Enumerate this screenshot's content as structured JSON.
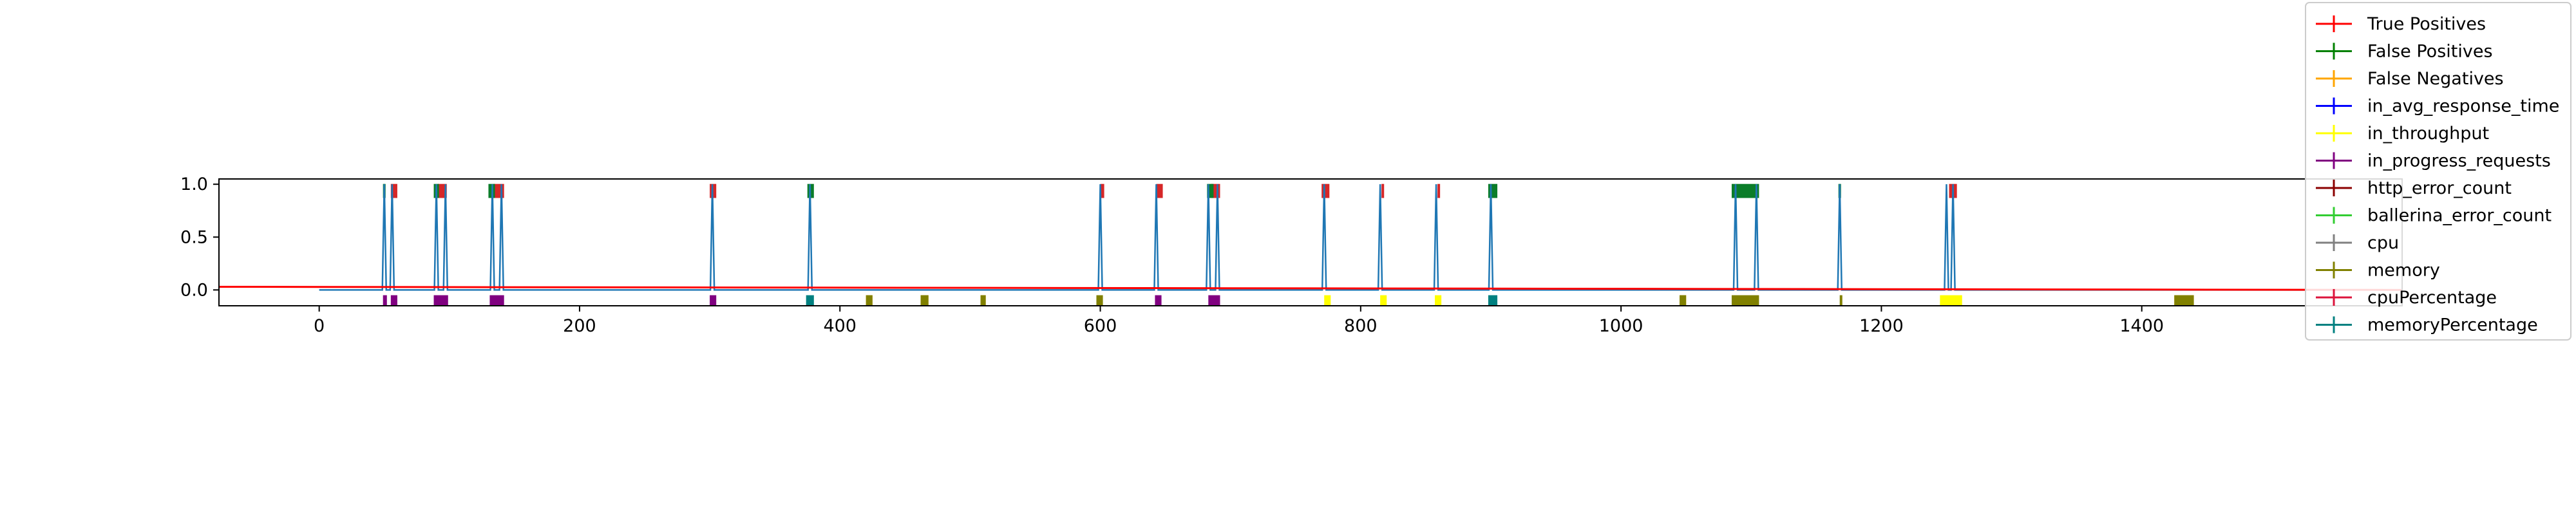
{
  "chart_data": {
    "type": "line",
    "title": "",
    "xlabel": "",
    "ylabel": "",
    "xlim": [
      -77,
      1600
    ],
    "ylim": [
      -0.15,
      1.05
    ],
    "x_ticks": [
      0,
      200,
      400,
      600,
      800,
      1000,
      1200,
      1400
    ],
    "x_tick_labels": [
      "0",
      "200",
      "400",
      "600",
      "800",
      "1000",
      "1200",
      "1400"
    ],
    "y_ticks": [
      0.0,
      0.5,
      1.0
    ],
    "y_tick_labels": [
      "0.0",
      "0.5",
      "1.0"
    ],
    "grid": false,
    "legend_position": "top-right (overflowing plot area)",
    "threshold_line": {
      "color": "#ff0000",
      "y_start": 0.03,
      "y_end": 0.0
    },
    "anomaly_score_line": {
      "color": "#1f77b4",
      "baseline": 0.0,
      "peaks_x": [
        50,
        56,
        90,
        97,
        133,
        140,
        302,
        377,
        600,
        643,
        683,
        690,
        772,
        815,
        858,
        900,
        1088,
        1104,
        1168,
        1250,
        1255
      ]
    },
    "top_bands": [
      {
        "series": "True Positives",
        "color": "#d62728",
        "ranges": [
          [
            55,
            60
          ],
          [
            91,
            98
          ],
          [
            134,
            142
          ],
          [
            300,
            305
          ],
          [
            600,
            603
          ],
          [
            643,
            648
          ],
          [
            685,
            692
          ],
          [
            770,
            776
          ],
          [
            816,
            818
          ],
          [
            859,
            861
          ],
          [
            1252,
            1258
          ]
        ]
      },
      {
        "series": "False Positives",
        "color": "#0b7d29",
        "ranges": [
          [
            49,
            51
          ],
          [
            88,
            92
          ],
          [
            130,
            135
          ],
          [
            375,
            380
          ],
          [
            682,
            687
          ],
          [
            898,
            905
          ],
          [
            1085,
            1106
          ],
          [
            1167,
            1169
          ]
        ]
      }
    ],
    "bottom_marks": [
      {
        "series": "False Negatives",
        "color": "#ffa500",
        "ranges": [
          [
            420,
            425
          ],
          [
            462,
            468
          ],
          [
            508,
            512
          ],
          [
            1045,
            1050
          ],
          [
            1425,
            1440
          ]
        ]
      },
      {
        "series": "in_throughput",
        "color": "#ffff00",
        "ranges": [
          [
            772,
            777
          ],
          [
            815,
            820
          ],
          [
            857,
            862
          ],
          [
            1245,
            1262
          ]
        ]
      },
      {
        "series": "in_progress_requests",
        "color": "#800080",
        "ranges": [
          [
            49,
            52
          ],
          [
            55,
            60
          ],
          [
            88,
            99
          ],
          [
            131,
            142
          ],
          [
            300,
            305
          ],
          [
            642,
            647
          ],
          [
            683,
            692
          ]
        ]
      },
      {
        "series": "memory",
        "color": "#808000",
        "ranges": [
          [
            420,
            425
          ],
          [
            462,
            468
          ],
          [
            508,
            512
          ],
          [
            597,
            602
          ],
          [
            1045,
            1050
          ],
          [
            1085,
            1106
          ],
          [
            1168,
            1170
          ],
          [
            1425,
            1440
          ]
        ]
      },
      {
        "series": "memoryPercentage",
        "color": "#008080",
        "ranges": [
          [
            374,
            380
          ],
          [
            898,
            905
          ]
        ]
      }
    ],
    "series": [
      {
        "name": "True Positives",
        "color": "#ff0000"
      },
      {
        "name": "False Positives",
        "color": "#008000"
      },
      {
        "name": "False Negatives",
        "color": "#ffa500"
      },
      {
        "name": "in_avg_response_time",
        "color": "#0000ff"
      },
      {
        "name": "in_throughput",
        "color": "#ffff00"
      },
      {
        "name": "in_progress_requests",
        "color": "#800080"
      },
      {
        "name": "http_error_count",
        "color": "#8b0000"
      },
      {
        "name": "ballerina_error_count",
        "color": "#32cd32"
      },
      {
        "name": "cpu",
        "color": "#808080"
      },
      {
        "name": "memory",
        "color": "#808000"
      },
      {
        "name": "cpuPercentage",
        "color": "#dc143c"
      },
      {
        "name": "memoryPercentage",
        "color": "#008080"
      }
    ]
  }
}
